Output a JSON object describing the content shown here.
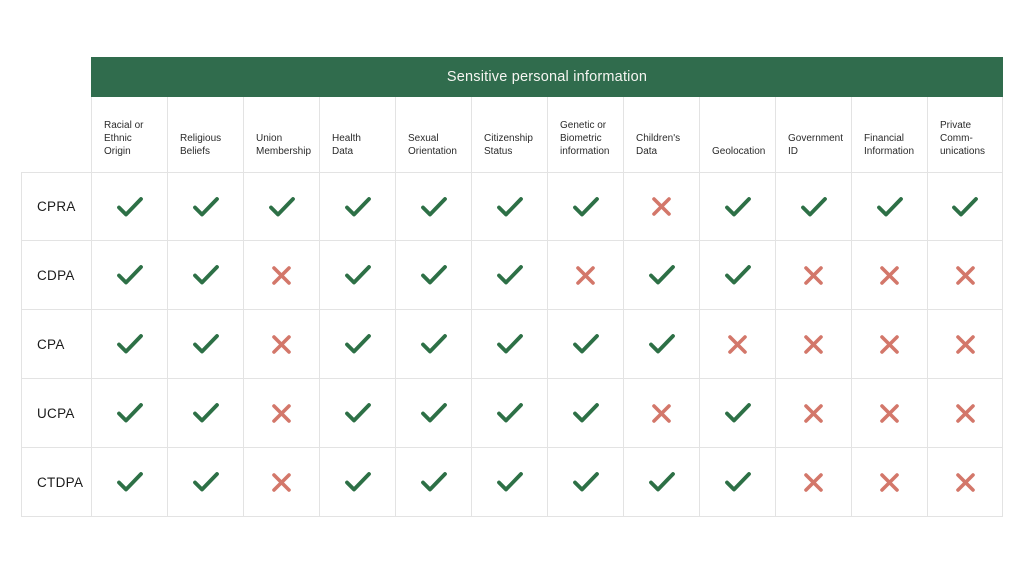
{
  "colors": {
    "band_green": "#306c4d",
    "check_green": "#2d7046",
    "cross_red": "#d3776a",
    "border_gray": "#e3e3e3",
    "band_text": "#f5f5f1",
    "header_text": "#2b2b2b",
    "label_text": "#1b1b1b",
    "background": "#ffffff"
  },
  "icons": {
    "check": "check-icon",
    "cross": "cross-icon"
  },
  "chart_data": {
    "type": "table",
    "title": "Sensitive personal information",
    "columns": [
      "Racial or Ethnic Origin",
      "Religious Beliefs",
      "Union Membership",
      "Health Data",
      "Sexual Orientation",
      "Citizenship Status",
      "Genetic or Biometric information",
      "Children's Data",
      "Geolocation",
      "Government ID",
      "Financial Information",
      "Private Comm-unications"
    ],
    "column_display": [
      "Racial or\nEthnic\nOrigin",
      "Religious\nBeliefs",
      "Union\nMembership",
      "Health\nData",
      "Sexual\nOrientation",
      "Citizenship\nStatus",
      "Genetic or\nBiometric\ninformation",
      "Children's\nData",
      "Geolocation",
      "Government\nID",
      "Financial\nInformation",
      "Private\nComm-\nunications"
    ],
    "rows": [
      {
        "label": "CPRA",
        "values": [
          "check",
          "check",
          "check",
          "check",
          "check",
          "check",
          "check",
          "cross",
          "check",
          "check",
          "check",
          "check"
        ]
      },
      {
        "label": "CDPA",
        "values": [
          "check",
          "check",
          "cross",
          "check",
          "check",
          "check",
          "cross",
          "check",
          "check",
          "cross",
          "cross",
          "cross"
        ]
      },
      {
        "label": "CPA",
        "values": [
          "check",
          "check",
          "cross",
          "check",
          "check",
          "check",
          "check",
          "check",
          "cross",
          "cross",
          "cross",
          "cross"
        ]
      },
      {
        "label": "UCPA",
        "values": [
          "check",
          "check",
          "cross",
          "check",
          "check",
          "check",
          "check",
          "cross",
          "check",
          "cross",
          "cross",
          "cross"
        ]
      },
      {
        "label": "CTDPA",
        "values": [
          "check",
          "check",
          "cross",
          "check",
          "check",
          "check",
          "check",
          "check",
          "check",
          "cross",
          "cross",
          "cross"
        ]
      }
    ]
  }
}
